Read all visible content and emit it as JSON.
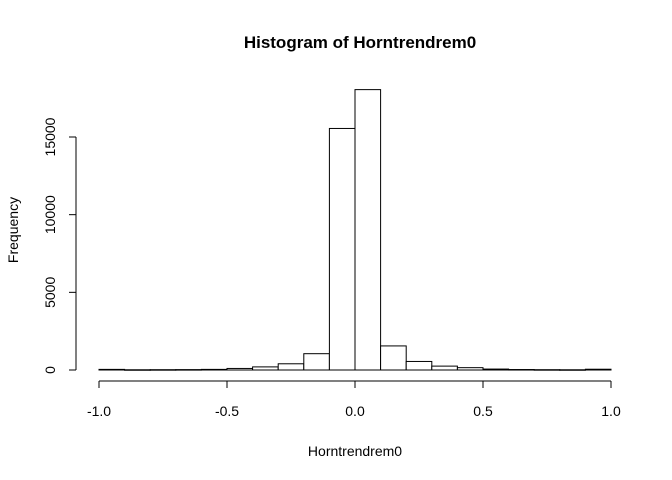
{
  "chart_data": {
    "type": "bar",
    "title": "Histogram of Horntrendrem0",
    "xlabel": "Horntrendrem0",
    "ylabel": "Frequency",
    "xlim": [
      -1.0,
      1.0
    ],
    "ylim": [
      0,
      18000
    ],
    "x_ticks": [
      -1.0,
      -0.5,
      0.0,
      0.5,
      1.0
    ],
    "x_tick_labels": [
      "-1.0",
      "-0.5",
      "0.0",
      "0.5",
      "1.0"
    ],
    "y_ticks": [
      0,
      5000,
      10000,
      15000
    ],
    "y_tick_labels": [
      "0",
      "5000",
      "10000",
      "15000"
    ],
    "bin_edges": [
      -1.0,
      -0.9,
      -0.8,
      -0.7,
      -0.6,
      -0.5,
      -0.4,
      -0.3,
      -0.2,
      -0.1,
      0.0,
      0.1,
      0.2,
      0.3,
      0.4,
      0.5,
      0.6,
      0.7,
      0.8,
      0.9,
      1.0
    ],
    "values": [
      40,
      15,
      20,
      25,
      40,
      100,
      200,
      400,
      1050,
      15550,
      18050,
      1550,
      550,
      250,
      150,
      60,
      30,
      20,
      15,
      50
    ],
    "grid": false,
    "colors": {
      "bar_fill": "#ffffff",
      "bar_stroke": "#000000"
    }
  }
}
